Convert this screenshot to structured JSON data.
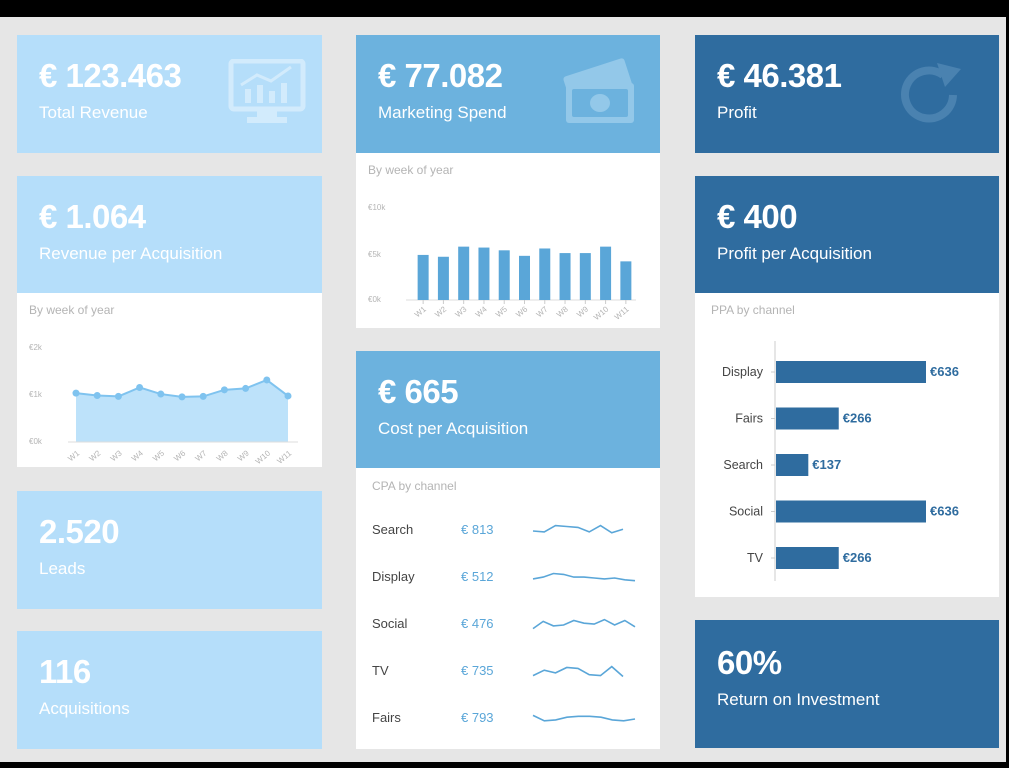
{
  "colors": {
    "light": "#b5defa",
    "mid": "#6cb2de",
    "dark": "#2f6c9f",
    "bar": "#5aa6d8",
    "area": "#bde2fa"
  },
  "total_revenue": {
    "value": "€ 123.463",
    "label": "Total Revenue",
    "icon": "monitor-chart-icon"
  },
  "marketing_spend": {
    "value": "€ 77.082",
    "label": "Marketing Spend",
    "icon": "money-bills-icon"
  },
  "profit": {
    "value": "€ 46.381",
    "label": "Profit",
    "icon": "refresh-icon"
  },
  "revenue_per_acquisition": {
    "value": "€ 1.064",
    "label": "Revenue per Acquisition"
  },
  "profit_per_acquisition": {
    "value": "€ 400",
    "label": "Profit per Acquisition"
  },
  "cost_per_acquisition": {
    "value": "€ 665",
    "label": "Cost per Acquisition"
  },
  "leads": {
    "value": "2.520",
    "label": "Leads"
  },
  "acquisitions": {
    "value": "116",
    "label": "Acquisitions"
  },
  "roi": {
    "value": "60%",
    "label": "Return on Investment"
  },
  "chart_data": [
    {
      "id": "marketing-spend-weekly",
      "type": "bar",
      "subtitle": "By week of year",
      "categories": [
        "W1",
        "W2",
        "W3",
        "W4",
        "W5",
        "W6",
        "W7",
        "W8",
        "W9",
        "W10",
        "W11"
      ],
      "values": [
        4.9,
        4.7,
        5.8,
        5.7,
        5.4,
        4.8,
        5.6,
        5.1,
        5.1,
        5.8,
        4.2
      ],
      "yticks": [
        "€0k",
        "€5k",
        "€10k"
      ],
      "ylim": [
        0,
        10
      ]
    },
    {
      "id": "revenue-per-acquisition-weekly",
      "type": "area",
      "subtitle": "By week of year",
      "categories": [
        "W1",
        "W2",
        "W3",
        "W4",
        "W5",
        "W6",
        "W7",
        "W8",
        "W9",
        "W10",
        "W11"
      ],
      "values": [
        1.04,
        0.99,
        0.97,
        1.16,
        1.02,
        0.96,
        0.97,
        1.11,
        1.14,
        1.32,
        0.98
      ],
      "yticks": [
        "€0k",
        "€1k",
        "€2k"
      ],
      "ylim": [
        0,
        2
      ]
    },
    {
      "id": "cpa-by-channel",
      "type": "table",
      "subtitle": "CPA by channel",
      "rows": [
        {
          "channel": "Search",
          "value": "€ 813",
          "trend": [
            0.5,
            0.55,
            0.2,
            0.25,
            0.3,
            0.55,
            0.2,
            0.6,
            0.4
          ]
        },
        {
          "channel": "Display",
          "value": "€ 512",
          "trend": [
            0.55,
            0.45,
            0.25,
            0.3,
            0.45,
            0.45,
            0.5,
            0.55,
            0.5,
            0.6,
            0.65
          ]
        },
        {
          "channel": "Social",
          "value": "€ 476",
          "trend": [
            0.7,
            0.3,
            0.55,
            0.5,
            0.25,
            0.4,
            0.45,
            0.2,
            0.5,
            0.25,
            0.6
          ]
        },
        {
          "channel": "TV",
          "value": "€ 735",
          "trend": [
            0.7,
            0.4,
            0.55,
            0.25,
            0.3,
            0.65,
            0.7,
            0.2,
            0.75
          ]
        },
        {
          "channel": "Fairs",
          "value": "€ 793",
          "trend": [
            0.3,
            0.6,
            0.55,
            0.4,
            0.35,
            0.35,
            0.4,
            0.55,
            0.6,
            0.5
          ]
        }
      ]
    },
    {
      "id": "ppa-by-channel",
      "type": "bar",
      "orientation": "horizontal",
      "subtitle": "PPA by channel",
      "categories": [
        "Display",
        "Fairs",
        "Search",
        "Social",
        "TV"
      ],
      "values": [
        636,
        266,
        137,
        636,
        266
      ],
      "labels": [
        "€636",
        "€266",
        "€137",
        "€636",
        "€266"
      ]
    }
  ]
}
